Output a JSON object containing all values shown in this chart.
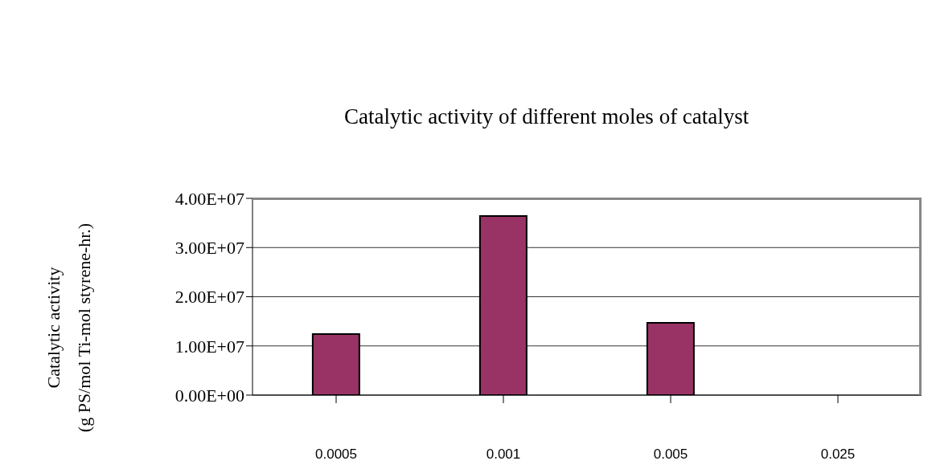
{
  "chart_data": {
    "type": "bar",
    "title": "Catalytic activity of different moles of catalyst",
    "ylabel": "Catalytic activity\n(g PS/mol Ti-mol styrene-hr.)",
    "categories": [
      "0.0005",
      "0.001",
      "0.005",
      "0.025"
    ],
    "values": [
      12400000.0,
      36400000.0,
      14700000.0,
      0
    ],
    "color": "#993366",
    "ylim": [
      0,
      40000000.0
    ],
    "yticks": [
      {
        "value": 0,
        "label": "0.00E+00"
      },
      {
        "value": 10000000.0,
        "label": "1.00E+07"
      },
      {
        "value": 20000000.0,
        "label": "2.00E+07"
      },
      {
        "value": 30000000.0,
        "label": "3.00E+07"
      },
      {
        "value": 40000000.0,
        "label": "4.00E+07"
      }
    ],
    "grid": "y"
  }
}
